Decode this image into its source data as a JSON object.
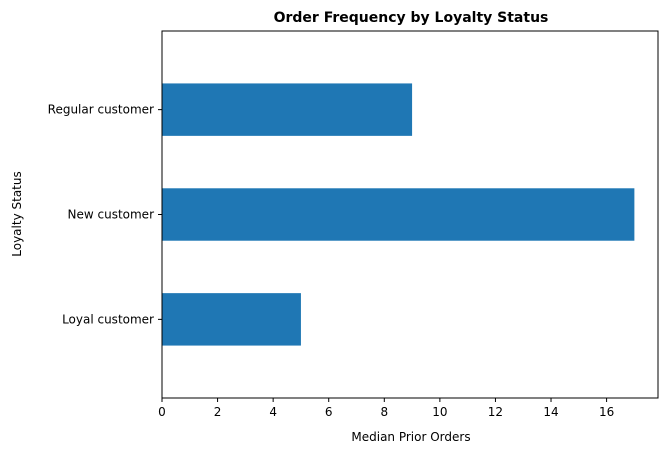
{
  "chart_data": {
    "type": "bar",
    "orientation": "horizontal",
    "title": "Order Frequency by Loyalty Status",
    "xlabel": "Median Prior Orders",
    "ylabel": "Loyalty Status",
    "categories": [
      "Loyal customer",
      "New customer",
      "Regular customer"
    ],
    "values": [
      5,
      17,
      9
    ],
    "xlim": [
      0,
      17.85
    ],
    "xticks": [
      0,
      2,
      4,
      6,
      8,
      10,
      12,
      14,
      16
    ],
    "grid": false,
    "legend": "none",
    "bar_color": "#1f77b4"
  }
}
